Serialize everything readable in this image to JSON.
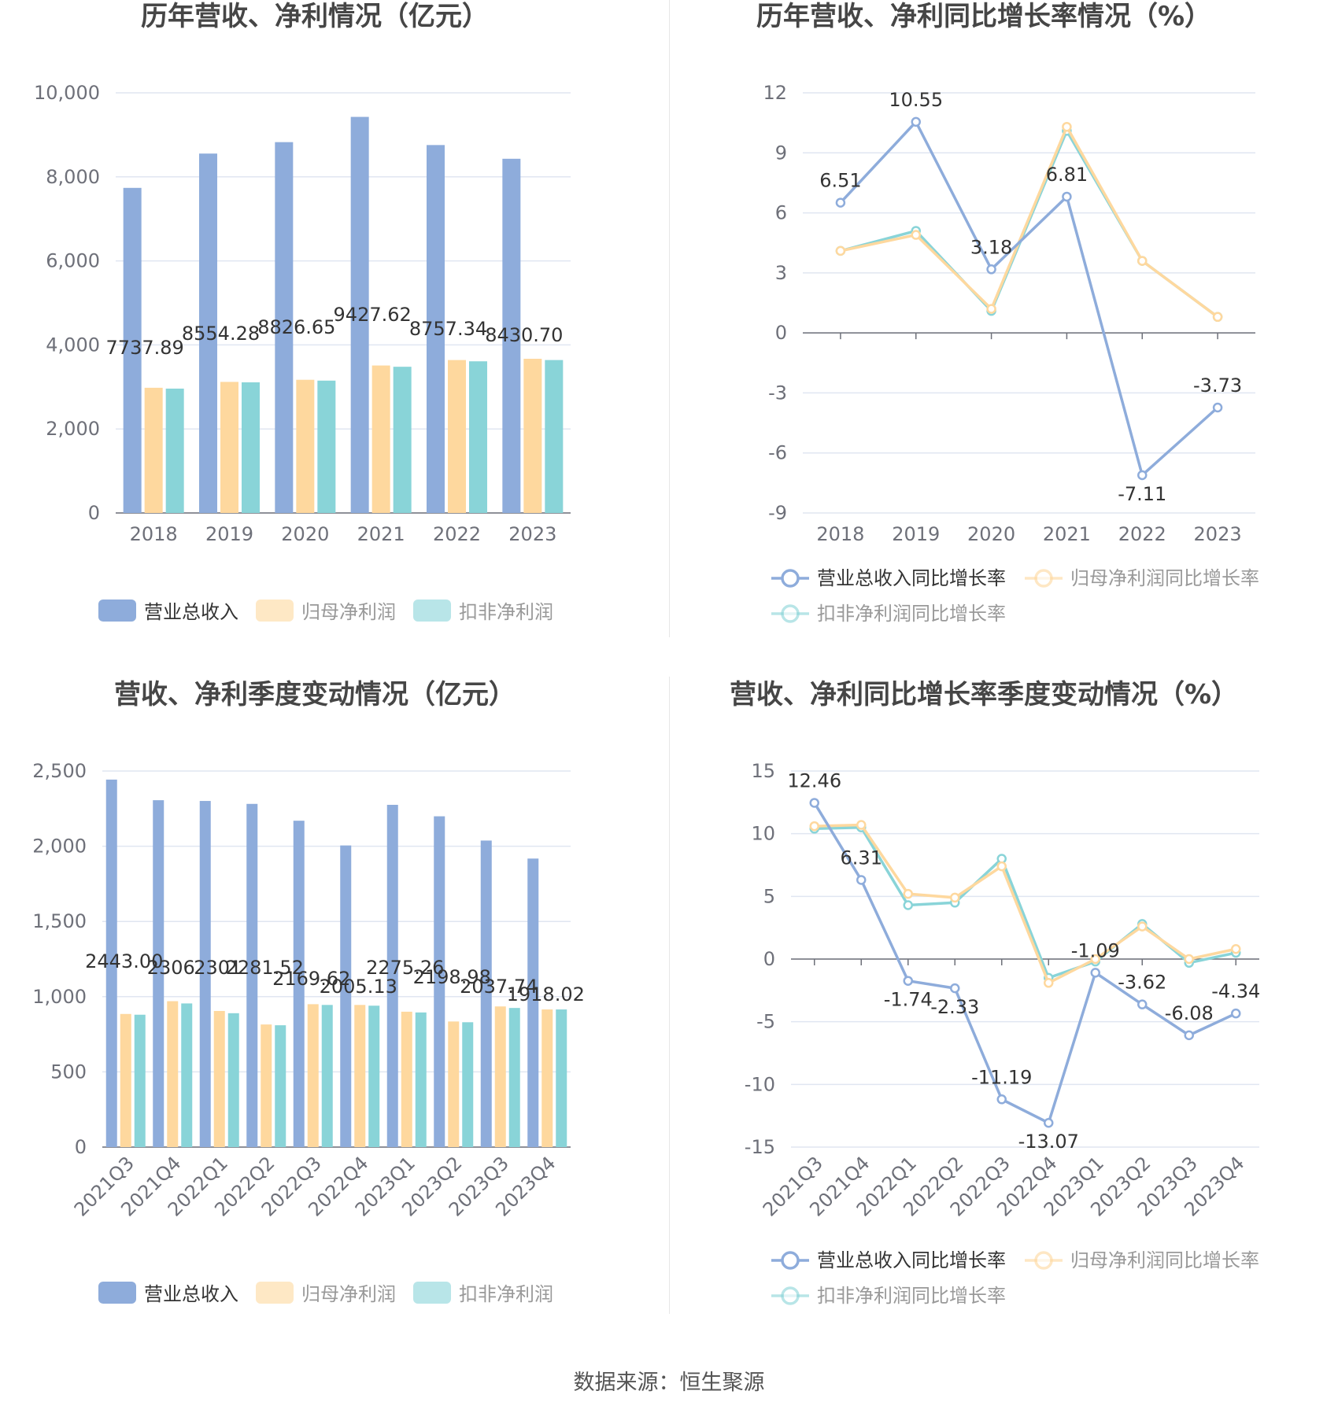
{
  "source": "数据来源：恒生聚源",
  "colors": {
    "revenue": "#8eacdb",
    "net_profit": "#fed89e",
    "deducted_profit": "#89d4d8",
    "axis": "#6e7079",
    "grid": "#e0e6f1"
  },
  "chart_data": [
    {
      "id": "annual_values",
      "type": "bar",
      "title": "历年营收、净利情况（亿元）",
      "categories": [
        "2018",
        "2019",
        "2020",
        "2021",
        "2022",
        "2023"
      ],
      "ylim": [
        0,
        10000
      ],
      "yticks": [
        "0",
        "2,000",
        "4,000",
        "6,000",
        "8,000",
        "10,000"
      ],
      "ytick_values": [
        0,
        2000,
        4000,
        6000,
        8000,
        10000
      ],
      "legend": "bottom",
      "grid": true,
      "series": [
        {
          "name": "营业总收入",
          "values": [
            7737.89,
            8554.28,
            8826.65,
            9427.62,
            8757.34,
            8430.7
          ],
          "labels": [
            "7737.89",
            "8554.28",
            "8826.65",
            "9427.62",
            "8757.34",
            "8430.70"
          ]
        },
        {
          "name": "归母净利润",
          "values": [
            2980,
            3120,
            3170,
            3510,
            3640,
            3670
          ]
        },
        {
          "name": "扣非净利润",
          "values": [
            2960,
            3110,
            3150,
            3480,
            3610,
            3640
          ]
        }
      ]
    },
    {
      "id": "annual_growth",
      "type": "line",
      "title": "历年营收、净利同比增长率情况（%）",
      "categories": [
        "2018",
        "2019",
        "2020",
        "2021",
        "2022",
        "2023"
      ],
      "ylim": [
        -9,
        12
      ],
      "yticks": [
        "-9",
        "-6",
        "-3",
        "0",
        "3",
        "6",
        "9",
        "12"
      ],
      "ytick_values": [
        -9,
        -6,
        -3,
        0,
        3,
        6,
        9,
        12
      ],
      "legend": "bottom",
      "grid": true,
      "series": [
        {
          "name": "营业总收入同比增长率",
          "values": [
            6.51,
            10.55,
            3.18,
            6.81,
            -7.11,
            -3.73
          ],
          "labels": [
            "6.51",
            "10.55",
            "3.18",
            "6.81",
            "-7.11",
            "-3.73"
          ]
        },
        {
          "name": "归母净利润同比增长率",
          "values": [
            4.1,
            4.9,
            1.2,
            10.3,
            3.6,
            0.8
          ]
        },
        {
          "name": "扣非净利润同比增长率",
          "values": [
            4.1,
            5.1,
            1.1,
            10.1,
            3.6,
            0.8
          ]
        }
      ]
    },
    {
      "id": "quarterly_values",
      "type": "bar",
      "title": "营收、净利季度变动情况（亿元）",
      "categories": [
        "2021Q3",
        "2021Q4",
        "2022Q1",
        "2022Q2",
        "2022Q3",
        "2022Q4",
        "2023Q1",
        "2023Q2",
        "2023Q3",
        "2023Q4"
      ],
      "ylim": [
        0,
        2500
      ],
      "yticks": [
        "0",
        "500",
        "1,000",
        "1,500",
        "2,000",
        "2,500"
      ],
      "ytick_values": [
        0,
        500,
        1000,
        1500,
        2000,
        2500
      ],
      "legend": "bottom",
      "grid": true,
      "series": [
        {
          "name": "营业总收入",
          "values": [
            2443.0,
            2306.0,
            2301.0,
            2281.52,
            2169.62,
            2005.13,
            2275.26,
            2198.98,
            2037.74,
            1918.02
          ],
          "labels": [
            "2443.00",
            "2306",
            "2301",
            "2281.52",
            "2169.62",
            "2005.13",
            "2275.26",
            "2198.98",
            "2037.74",
            "1918.02"
          ]
        },
        {
          "name": "归母净利润",
          "values": [
            885,
            970,
            905,
            815,
            950,
            945,
            900,
            835,
            935,
            915
          ]
        },
        {
          "name": "扣非净利润",
          "values": [
            880,
            955,
            890,
            810,
            945,
            940,
            895,
            830,
            925,
            915
          ]
        }
      ]
    },
    {
      "id": "quarterly_growth",
      "type": "line",
      "title": "营收、净利同比增长率季度变动情况（%）",
      "categories": [
        "2021Q3",
        "2021Q4",
        "2022Q1",
        "2022Q2",
        "2022Q3",
        "2022Q4",
        "2023Q1",
        "2023Q2",
        "2023Q3",
        "2023Q4"
      ],
      "ylim": [
        -15,
        15
      ],
      "yticks": [
        "-15",
        "-10",
        "-5",
        "0",
        "5",
        "10",
        "15"
      ],
      "ytick_values": [
        -15,
        -10,
        -5,
        0,
        5,
        10,
        15
      ],
      "legend": "bottom",
      "grid": true,
      "series": [
        {
          "name": "营业总收入同比增长率",
          "values": [
            12.46,
            6.31,
            -1.74,
            -2.33,
            -11.19,
            -13.07,
            -1.09,
            -3.62,
            -6.08,
            -4.34
          ],
          "labels": [
            "12.46",
            "6.31",
            "-1.74",
            "-2.33",
            "-11.19",
            "-13.07",
            "-1.09",
            "-3.62",
            "-6.08",
            "-4.34"
          ]
        },
        {
          "name": "归母净利润同比增长率",
          "values": [
            10.6,
            10.7,
            5.2,
            4.9,
            7.4,
            -1.9,
            0.0,
            2.6,
            0.0,
            0.8
          ]
        },
        {
          "name": "扣非净利润同比增长率",
          "values": [
            10.4,
            10.5,
            4.3,
            4.5,
            8.0,
            -1.5,
            -0.2,
            2.8,
            -0.3,
            0.5
          ]
        }
      ]
    }
  ]
}
